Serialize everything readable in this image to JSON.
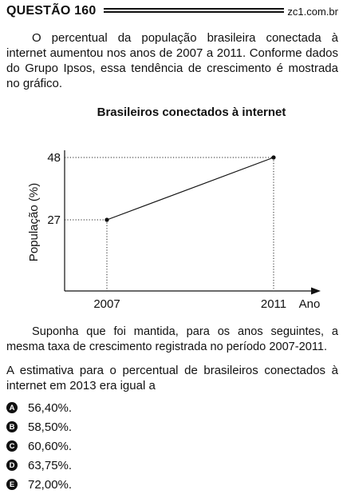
{
  "header": {
    "question": "QUESTÃO 160",
    "site": "zc1.com.br"
  },
  "intro": "O percentual da população brasileira conectada à internet aumentou nos anos de 2007 a 2011. Conforme dados do Grupo Ipsos, essa tendência de crescimento é mostrada no gráfico.",
  "chart_data": {
    "type": "line",
    "title": "Brasileiros conectados à internet",
    "xlabel": "Ano",
    "ylabel": "População (%)",
    "x": [
      2007,
      2011
    ],
    "x_ticks": [
      "2007",
      "2011"
    ],
    "y_ticks": [
      "27",
      "48"
    ],
    "series": [
      {
        "values": [
          27,
          48
        ]
      }
    ],
    "guide_lines": "dotted",
    "grid": false
  },
  "supposition": "Suponha que foi mantida, para os anos seguintes, a mesma taxa de crescimento registrada no período 2007-2011.",
  "question": "A estimativa para o percentual de brasileiros conectados à internet em 2013 era igual a",
  "options": [
    {
      "letter": "A",
      "text": "56,40%."
    },
    {
      "letter": "B",
      "text": "58,50%."
    },
    {
      "letter": "C",
      "text": "60,60%."
    },
    {
      "letter": "D",
      "text": "63,75%."
    },
    {
      "letter": "E",
      "text": "72,00%."
    }
  ]
}
